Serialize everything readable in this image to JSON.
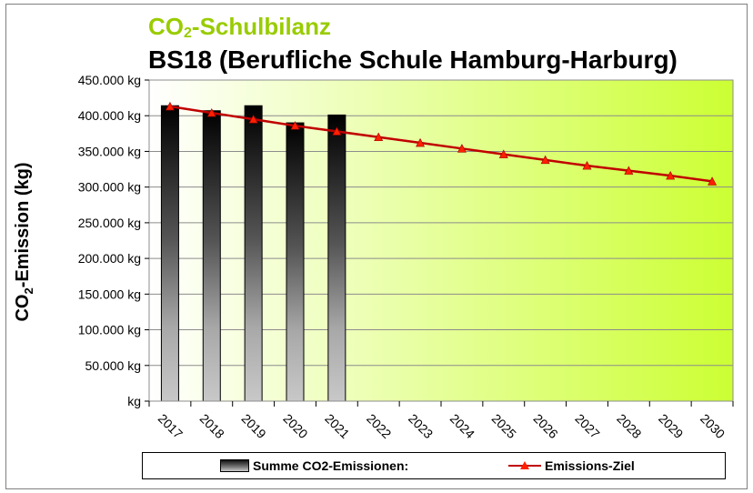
{
  "title_main": "CO",
  "title_main_sub": "2",
  "title_main_rest": "-Schulbilanz",
  "title_school": "BS18 (Berufliche Schule Hamburg-Harburg)",
  "colors": {
    "title_accent": "#99cc00",
    "target_line": "#c00000",
    "target_marker": "#ff2000",
    "plot_gradient_start": "#ffffff",
    "plot_gradient_end": "#ccff33"
  },
  "chart_data": {
    "type": "bar",
    "ylabel": "CO",
    "ylabel_sub": "2",
    "ylabel_rest": "-Emission (kg)",
    "categories": [
      "2017",
      "2018",
      "2019",
      "2020",
      "2021",
      "2022",
      "2023",
      "2024",
      "2025",
      "2026",
      "2027",
      "2028",
      "2029",
      "2030"
    ],
    "ylim": [
      0,
      450000
    ],
    "yticks": [
      0,
      50000,
      100000,
      150000,
      200000,
      250000,
      300000,
      350000,
      400000,
      450000
    ],
    "ytick_labels": [
      "kg",
      "50.000 kg",
      "100.000 kg",
      "150.000 kg",
      "200.000 kg",
      "250.000 kg",
      "300.000 kg",
      "350.000 kg",
      "400.000 kg",
      "450.000 kg"
    ],
    "grid": true,
    "legend_position": "bottom",
    "series": [
      {
        "name": "Summe CO2-Emissionen:",
        "kind": "bar",
        "values": [
          414000,
          407000,
          414000,
          390000,
          401000,
          null,
          null,
          null,
          null,
          null,
          null,
          null,
          null,
          null
        ]
      },
      {
        "name": "Emissions-Ziel",
        "kind": "line",
        "values": [
          413000,
          404000,
          395000,
          386000,
          378000,
          370000,
          362000,
          354000,
          346000,
          338000,
          330000,
          323000,
          316000,
          308000
        ]
      }
    ]
  }
}
